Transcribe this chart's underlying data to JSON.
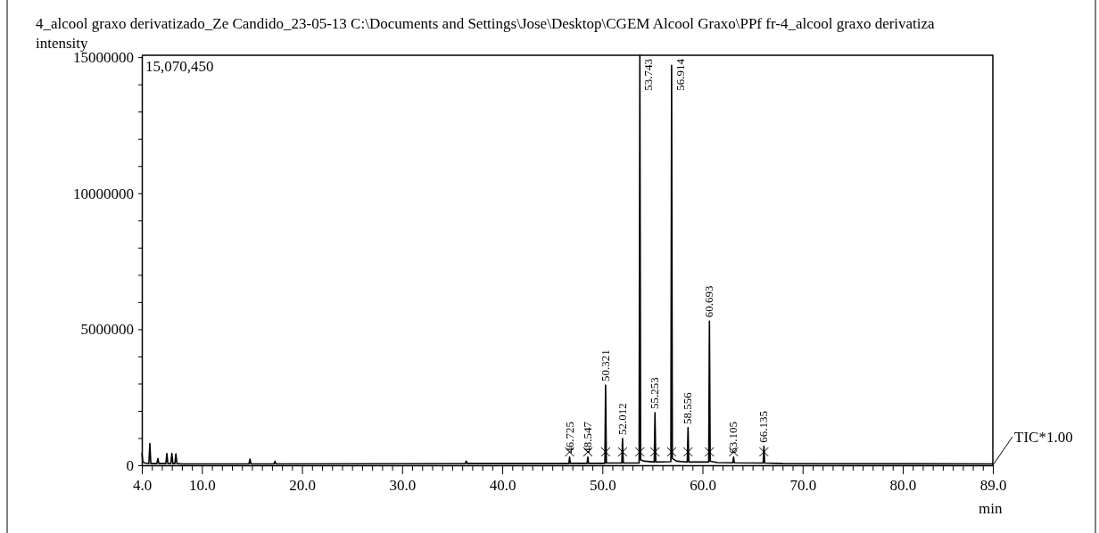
{
  "chart_data": {
    "type": "line",
    "title": "4_alcool graxo derivatizado_Ze Candido_23-05-13 C:\\Documents and Settings\\Jose\\Desktop\\CGEM Alcool Graxo\\PPf fr-4_alcool graxo derivatiza",
    "ylabel": "intensity",
    "xlabel": "min",
    "xlim": [
      4,
      89
    ],
    "ylim": [
      0,
      15070450
    ],
    "xticks": [
      {
        "value": 4,
        "label": "4.0"
      },
      {
        "value": 10,
        "label": "10.0"
      },
      {
        "value": 20,
        "label": "20.0"
      },
      {
        "value": 30,
        "label": "30.0"
      },
      {
        "value": 40,
        "label": "40.0"
      },
      {
        "value": 50,
        "label": "50.0"
      },
      {
        "value": 60,
        "label": "60.0"
      },
      {
        "value": 70,
        "label": "70.0"
      },
      {
        "value": 80,
        "label": "80.0"
      },
      {
        "value": 89,
        "label": "89.0"
      },
      {
        "value": 5,
        "label": null
      },
      {
        "value": 6,
        "label": null
      },
      {
        "value": 7,
        "label": null
      },
      {
        "value": 8,
        "label": null
      },
      {
        "value": 9,
        "label": null
      },
      {
        "value": 11,
        "label": null
      },
      {
        "value": 12,
        "label": null
      },
      {
        "value": 13,
        "label": null
      },
      {
        "value": 14,
        "label": null
      },
      {
        "value": 15,
        "label": null
      },
      {
        "value": 16,
        "label": null
      },
      {
        "value": 17,
        "label": null
      },
      {
        "value": 18,
        "label": null
      },
      {
        "value": 19,
        "label": null
      },
      {
        "value": 21,
        "label": null
      },
      {
        "value": 22,
        "label": null
      },
      {
        "value": 23,
        "label": null
      },
      {
        "value": 24,
        "label": null
      },
      {
        "value": 25,
        "label": null
      },
      {
        "value": 26,
        "label": null
      },
      {
        "value": 27,
        "label": null
      },
      {
        "value": 28,
        "label": null
      },
      {
        "value": 29,
        "label": null
      },
      {
        "value": 31,
        "label": null
      },
      {
        "value": 32,
        "label": null
      },
      {
        "value": 33,
        "label": null
      },
      {
        "value": 34,
        "label": null
      },
      {
        "value": 35,
        "label": null
      },
      {
        "value": 36,
        "label": null
      },
      {
        "value": 37,
        "label": null
      },
      {
        "value": 38,
        "label": null
      },
      {
        "value": 39,
        "label": null
      },
      {
        "value": 41,
        "label": null
      },
      {
        "value": 42,
        "label": null
      },
      {
        "value": 43,
        "label": null
      },
      {
        "value": 44,
        "label": null
      },
      {
        "value": 45,
        "label": null
      },
      {
        "value": 46,
        "label": null
      },
      {
        "value": 47,
        "label": null
      },
      {
        "value": 48,
        "label": null
      },
      {
        "value": 49,
        "label": null
      },
      {
        "value": 51,
        "label": null
      },
      {
        "value": 52,
        "label": null
      },
      {
        "value": 53,
        "label": null
      },
      {
        "value": 54,
        "label": null
      },
      {
        "value": 55,
        "label": null
      },
      {
        "value": 56,
        "label": null
      },
      {
        "value": 57,
        "label": null
      },
      {
        "value": 58,
        "label": null
      },
      {
        "value": 59,
        "label": null
      },
      {
        "value": 61,
        "label": null
      },
      {
        "value": 62,
        "label": null
      },
      {
        "value": 63,
        "label": null
      },
      {
        "value": 64,
        "label": null
      },
      {
        "value": 65,
        "label": null
      },
      {
        "value": 66,
        "label": null
      },
      {
        "value": 67,
        "label": null
      },
      {
        "value": 68,
        "label": null
      },
      {
        "value": 69,
        "label": null
      },
      {
        "value": 71,
        "label": null
      },
      {
        "value": 72,
        "label": null
      },
      {
        "value": 73,
        "label": null
      },
      {
        "value": 74,
        "label": null
      },
      {
        "value": 75,
        "label": null
      },
      {
        "value": 76,
        "label": null
      },
      {
        "value": 77,
        "label": null
      },
      {
        "value": 78,
        "label": null
      },
      {
        "value": 79,
        "label": null
      },
      {
        "value": 81,
        "label": null
      },
      {
        "value": 82,
        "label": null
      },
      {
        "value": 83,
        "label": null
      },
      {
        "value": 84,
        "label": null
      },
      {
        "value": 85,
        "label": null
      },
      {
        "value": 86,
        "label": null
      },
      {
        "value": 87,
        "label": null
      },
      {
        "value": 88,
        "label": null
      }
    ],
    "yticks": [
      0,
      5000000,
      10000000,
      15000000,
      {
        "value": 1000000,
        "label": null
      },
      {
        "value": 2000000,
        "label": null
      },
      {
        "value": 3000000,
        "label": null
      },
      {
        "value": 4000000,
        "label": null
      },
      {
        "value": 6000000,
        "label": null
      },
      {
        "value": 7000000,
        "label": null
      },
      {
        "value": 8000000,
        "label": null
      },
      {
        "value": 9000000,
        "label": null
      },
      {
        "value": 11000000,
        "label": null
      },
      {
        "value": 12000000,
        "label": null
      },
      {
        "value": 13000000,
        "label": null
      },
      {
        "value": 14000000,
        "label": null
      }
    ],
    "grid": false,
    "marker": "none",
    "line_style": "solid",
    "series": [
      {
        "color": "#000000",
        "x": [
          4.0,
          4.1,
          4.3,
          4.7,
          4.8,
          4.9,
          5.5,
          5.6,
          5.7,
          6.4,
          6.5,
          6.6,
          6.9,
          7.0,
          7.1,
          7.3,
          7.4,
          7.5,
          8.0,
          12.0,
          14.7,
          14.8,
          14.9,
          17.2,
          17.3,
          17.4,
          36.3,
          36.4,
          36.5,
          46.0,
          46.65,
          46.725,
          46.8,
          48.47,
          48.547,
          48.62,
          50.25,
          50.321,
          50.4,
          51.94,
          52.012,
          52.09,
          53.67,
          53.743,
          53.82,
          54.2,
          55.18,
          55.253,
          55.33,
          56.84,
          56.914,
          56.99,
          57.4,
          58.48,
          58.556,
          58.63,
          60.62,
          60.693,
          60.77,
          61.5,
          63.03,
          63.105,
          63.18,
          66.06,
          66.135,
          66.21,
          68.0,
          89.0
        ],
        "values": [
          450000,
          120000,
          80000,
          60000,
          800000,
          60000,
          60000,
          250000,
          60000,
          60000,
          430000,
          60000,
          60000,
          430000,
          60000,
          60000,
          420000,
          60000,
          50000,
          50000,
          50000,
          230000,
          50000,
          50000,
          150000,
          50000,
          60000,
          150000,
          60000,
          60000,
          60000,
          300000,
          70000,
          70000,
          300000,
          70000,
          70000,
          2950000,
          80000,
          80000,
          980000,
          80000,
          80000,
          15070000,
          200000,
          150000,
          120000,
          1930000,
          120000,
          130000,
          14700000,
          250000,
          150000,
          120000,
          1380000,
          120000,
          120000,
          5300000,
          150000,
          100000,
          90000,
          300000,
          90000,
          80000,
          700000,
          80000,
          60000,
          50000
        ]
      }
    ],
    "annotations": [
      "15,070,450",
      "TIC*1.00",
      {
        "text": "46.725",
        "x": 46.725,
        "y": 300000
      },
      {
        "text": "48.547",
        "x": 48.547,
        "y": 300000
      },
      {
        "text": "50.321",
        "x": 50.321,
        "y": 2950000
      },
      {
        "text": "52.012",
        "x": 52.012,
        "y": 980000
      },
      {
        "text": "53.743",
        "x": 53.743,
        "y": 15070450
      },
      {
        "text": "55.253",
        "x": 55.253,
        "y": 1930000
      },
      {
        "text": "56.914",
        "x": 56.914,
        "y": 14700000
      },
      {
        "text": "58.556",
        "x": 58.556,
        "y": 1380000
      },
      {
        "text": "60.693",
        "x": 60.693,
        "y": 5300000
      },
      {
        "text": "63.105",
        "x": 63.105,
        "y": 300000
      },
      {
        "text": "66.135",
        "x": 66.135,
        "y": 700000
      }
    ]
  }
}
